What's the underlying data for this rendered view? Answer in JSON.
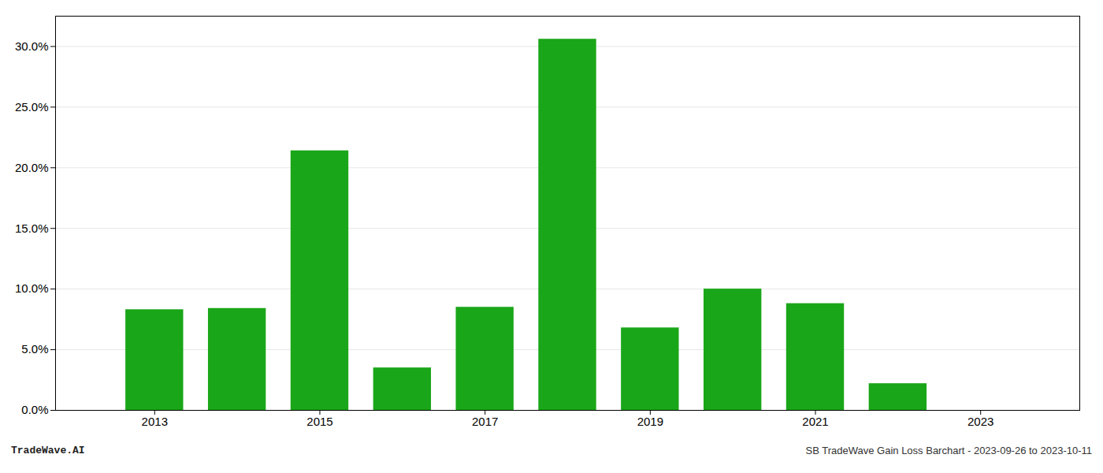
{
  "chart_data": {
    "type": "bar",
    "x": [
      2013,
      2014,
      2015,
      2016,
      2017,
      2018,
      2019,
      2020,
      2021,
      2022
    ],
    "values": [
      0.083,
      0.084,
      0.214,
      0.035,
      0.085,
      0.306,
      0.068,
      0.1,
      0.088,
      0.022
    ],
    "color": "#1aa619",
    "xlim": [
      2011.8,
      2024.2
    ],
    "xticks": [
      2013,
      2015,
      2017,
      2019,
      2021,
      2023
    ],
    "ylim": [
      0.0,
      0.325
    ],
    "yticks": [
      {
        "value": 0.0,
        "label": "0.0%"
      },
      {
        "value": 0.05,
        "label": "5.0%"
      },
      {
        "value": 0.1,
        "label": "10.0%"
      },
      {
        "value": 0.15,
        "label": "15.0%"
      },
      {
        "value": 0.2,
        "label": "20.0%"
      },
      {
        "value": 0.25,
        "label": "25.0%"
      },
      {
        "value": 0.3,
        "label": "30.0%"
      }
    ],
    "grid": true,
    "annotations": [
      "TradeWave.AI",
      "SB TradeWave Gain Loss Barchart - 2023-09-26 to 2023-10-11"
    ]
  }
}
